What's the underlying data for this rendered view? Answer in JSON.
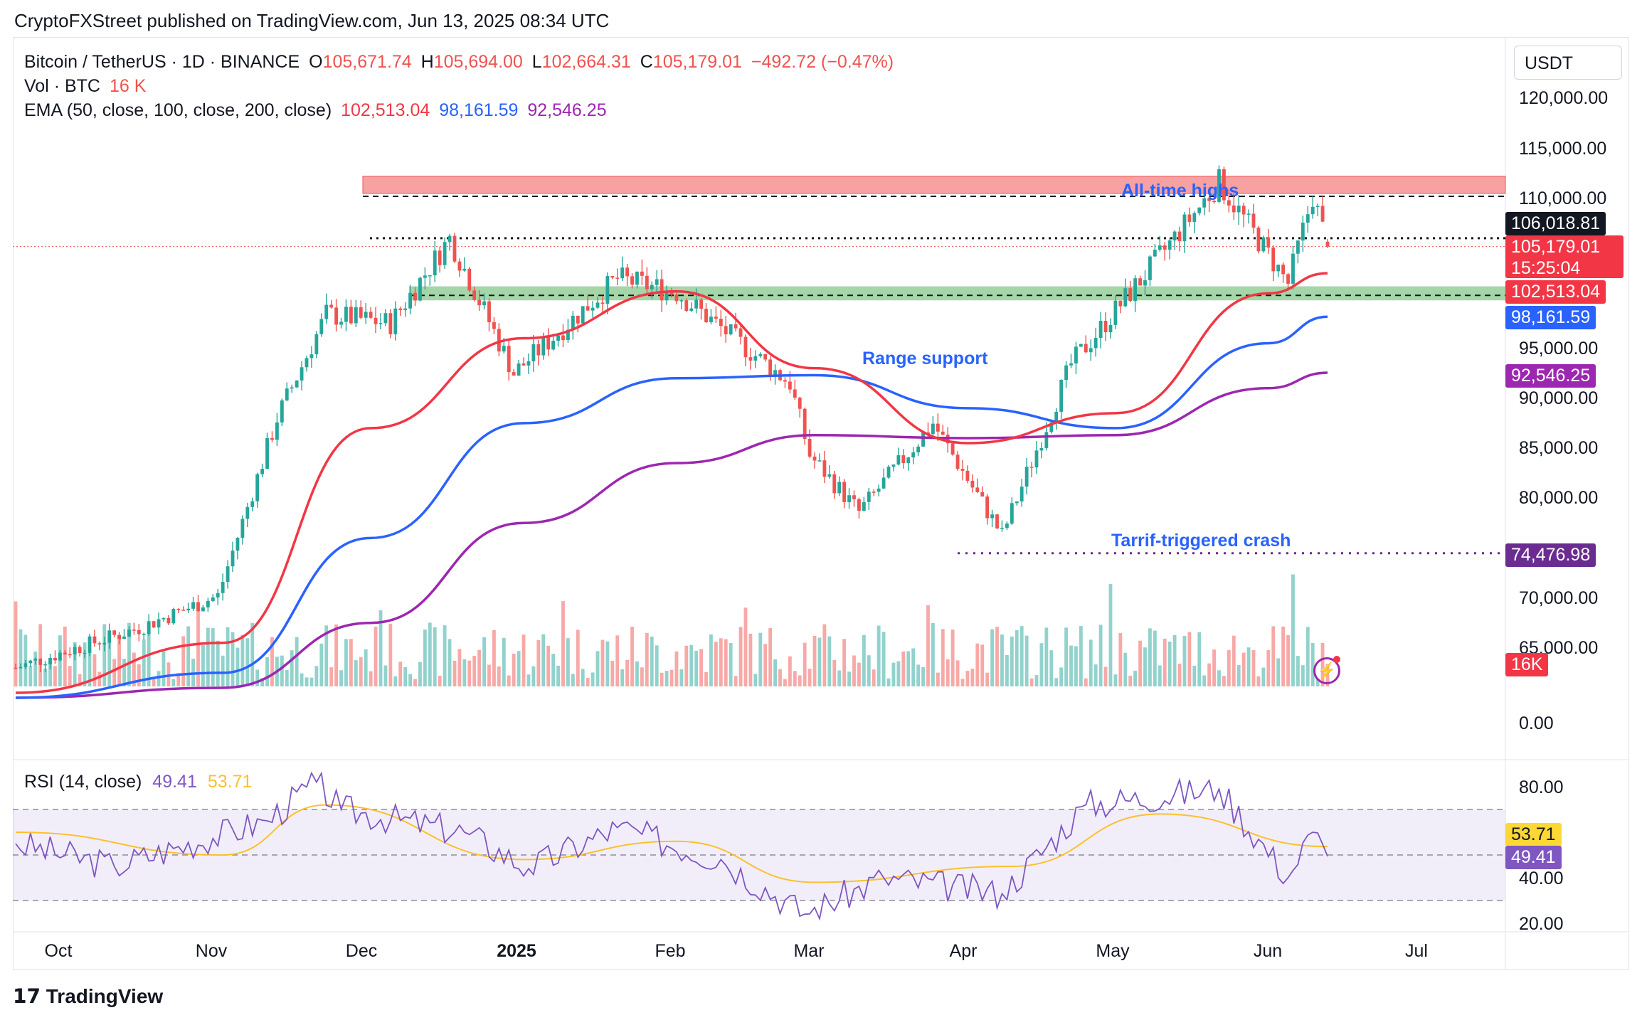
{
  "header": {
    "publish_text": "CryptoFXStreet published on TradingView.com, Jun 13, 2025 08:34 UTC"
  },
  "legend": {
    "symbol": "Bitcoin / TetherUS · 1D · BINANCE",
    "o_label": "O",
    "o_value": "105,671.74",
    "h_label": "H",
    "h_value": "105,694.00",
    "l_label": "L",
    "l_value": "102,664.31",
    "c_label": "C",
    "c_value": "105,179.01",
    "change": "−492.72 (−0.47%)",
    "vol_label": "Vol · BTC",
    "vol_value": "16 K",
    "ema_label": "EMA (50, close, 100, close, 200, close)",
    "ema50": "102,513.04",
    "ema100": "98,161.59",
    "ema200": "92,546.25"
  },
  "rsi_legend": {
    "label": "RSI (14, close)",
    "rsi": "49.41",
    "ma": "53.71"
  },
  "currency": "USDT",
  "price_axis": [
    "120,000.00",
    "115,000.00",
    "110,000.00",
    "95,000.00",
    "90,000.00",
    "85,000.00",
    "80,000.00",
    "70,000.00",
    "65,000.00"
  ],
  "volume_axis": "0.00",
  "rsi_axis": [
    "80.00",
    "40.00",
    "20.00"
  ],
  "price_tags": {
    "resistance": "106,018.81",
    "last": "105,179.01",
    "countdown": "15:25:04",
    "ema50": "102,513.04",
    "ema100": "98,161.59",
    "ema200": "92,546.25",
    "crash_low": "74,476.98",
    "volume": "16K",
    "rsi_ma": "53.71",
    "rsi": "49.41"
  },
  "time_axis": [
    "Oct",
    "Nov",
    "Dec",
    "2025",
    "Feb",
    "Mar",
    "Apr",
    "May",
    "Jun",
    "Jul"
  ],
  "annotations": {
    "ath": "All-time highs",
    "range": "Range support",
    "crash": "Tarrif-triggered crash"
  },
  "footer": {
    "logo": "TradingView"
  },
  "colors": {
    "up": "#26a69a",
    "down": "#ef5350",
    "ema50": "#f23645",
    "ema100": "#2962ff",
    "ema200": "#9c27b0",
    "rsi": "#7e57c2",
    "rsi_ma": "#fbc02d",
    "resistance_zone": "#f7a1a3",
    "support_zone": "#a5d6a7"
  },
  "chart_data": [
    {
      "type": "candlestick",
      "symbol": "Bitcoin / TetherUS",
      "interval": "1D",
      "x_range": [
        "2024-09-20",
        "2025-06-13"
      ],
      "y_range": [
        60000,
        122000
      ],
      "last": {
        "open": 105671.74,
        "high": 105694.0,
        "low": 102664.31,
        "close": 105179.01
      },
      "key_points": [
        {
          "date": "2024-09-20",
          "close": 63000
        },
        {
          "date": "2024-10-15",
          "close": 67000
        },
        {
          "date": "2024-10-31",
          "close": 70200
        },
        {
          "date": "2024-11-12",
          "close": 88000
        },
        {
          "date": "2024-11-22",
          "close": 98400
        },
        {
          "date": "2024-12-05",
          "close": 97500
        },
        {
          "date": "2024-12-17",
          "close": 106000
        },
        {
          "date": "2024-12-30",
          "close": 92500
        },
        {
          "date": "2025-01-20",
          "close": 102000
        },
        {
          "date": "2025-02-01",
          "close": 100600
        },
        {
          "date": "2025-02-24",
          "close": 91500
        },
        {
          "date": "2025-02-28",
          "close": 84300
        },
        {
          "date": "2025-03-10",
          "close": 78600
        },
        {
          "date": "2025-03-25",
          "close": 87500
        },
        {
          "date": "2025-04-08",
          "close": 76300
        },
        {
          "date": "2025-04-22",
          "close": 93400
        },
        {
          "date": "2025-05-08",
          "close": 103000
        },
        {
          "date": "2025-05-22",
          "close": 111600
        },
        {
          "date": "2025-06-05",
          "close": 101500
        },
        {
          "date": "2025-06-10",
          "close": 110300
        },
        {
          "date": "2025-06-13",
          "close": 105179.01
        }
      ],
      "ema50_points": [
        [
          "2024-09-20",
          60500
        ],
        [
          "2024-11-01",
          65500
        ],
        [
          "2024-12-01",
          87000
        ],
        [
          "2025-01-01",
          96000
        ],
        [
          "2025-02-01",
          100700
        ],
        [
          "2025-03-01",
          93000
        ],
        [
          "2025-04-01",
          85500
        ],
        [
          "2025-05-01",
          88500
        ],
        [
          "2025-06-01",
          100500
        ],
        [
          "2025-06-13",
          102513.04
        ]
      ],
      "ema100_points": [
        [
          "2024-09-20",
          60000
        ],
        [
          "2024-11-01",
          62500
        ],
        [
          "2024-12-01",
          76000
        ],
        [
          "2025-01-01",
          87500
        ],
        [
          "2025-02-01",
          92000
        ],
        [
          "2025-03-01",
          92300
        ],
        [
          "2025-04-01",
          89000
        ],
        [
          "2025-05-01",
          87000
        ],
        [
          "2025-06-01",
          95500
        ],
        [
          "2025-06-13",
          98161.59
        ]
      ],
      "ema200_points": [
        [
          "2024-09-20",
          60000
        ],
        [
          "2024-11-01",
          61000
        ],
        [
          "2024-12-01",
          67500
        ],
        [
          "2025-01-01",
          77500
        ],
        [
          "2025-02-01",
          83500
        ],
        [
          "2025-03-01",
          86300
        ],
        [
          "2025-04-01",
          86000
        ],
        [
          "2025-05-01",
          86300
        ],
        [
          "2025-06-01",
          91000
        ],
        [
          "2025-06-13",
          92546.25
        ]
      ],
      "zones": {
        "resistance": [
          110500,
          111800
        ],
        "support": [
          99800,
          101200
        ]
      },
      "levels": {
        "resistance_dotted": 106018.81,
        "crash_low": 74476.98
      }
    },
    {
      "type": "line",
      "name": "RSI (14, close)",
      "y_range": [
        20,
        90
      ],
      "bands": [
        30,
        50,
        70
      ],
      "rsi_points": [
        [
          "2024-09-20",
          55
        ],
        [
          "2024-10-10",
          45
        ],
        [
          "2024-11-10",
          65
        ],
        [
          "2024-11-20",
          82
        ],
        [
          "2024-11-25",
          70
        ],
        [
          "2024-12-20",
          60
        ],
        [
          "2025-01-02",
          44
        ],
        [
          "2025-01-20",
          62
        ],
        [
          "2025-02-10",
          48
        ],
        [
          "2025-02-27",
          24
        ],
        [
          "2025-03-15",
          40
        ],
        [
          "2025-04-08",
          33
        ],
        [
          "2025-04-25",
          72
        ],
        [
          "2025-05-22",
          79
        ],
        [
          "2025-06-05",
          40
        ],
        [
          "2025-06-10",
          60
        ],
        [
          "2025-06-13",
          49.41
        ]
      ],
      "ma_points": [
        [
          "2024-09-20",
          60
        ],
        [
          "2024-11-01",
          50
        ],
        [
          "2024-11-22",
          72
        ],
        [
          "2025-01-01",
          48
        ],
        [
          "2025-02-01",
          56
        ],
        [
          "2025-03-01",
          38
        ],
        [
          "2025-04-10",
          45
        ],
        [
          "2025-05-10",
          68
        ],
        [
          "2025-06-13",
          53.71
        ]
      ]
    }
  ]
}
